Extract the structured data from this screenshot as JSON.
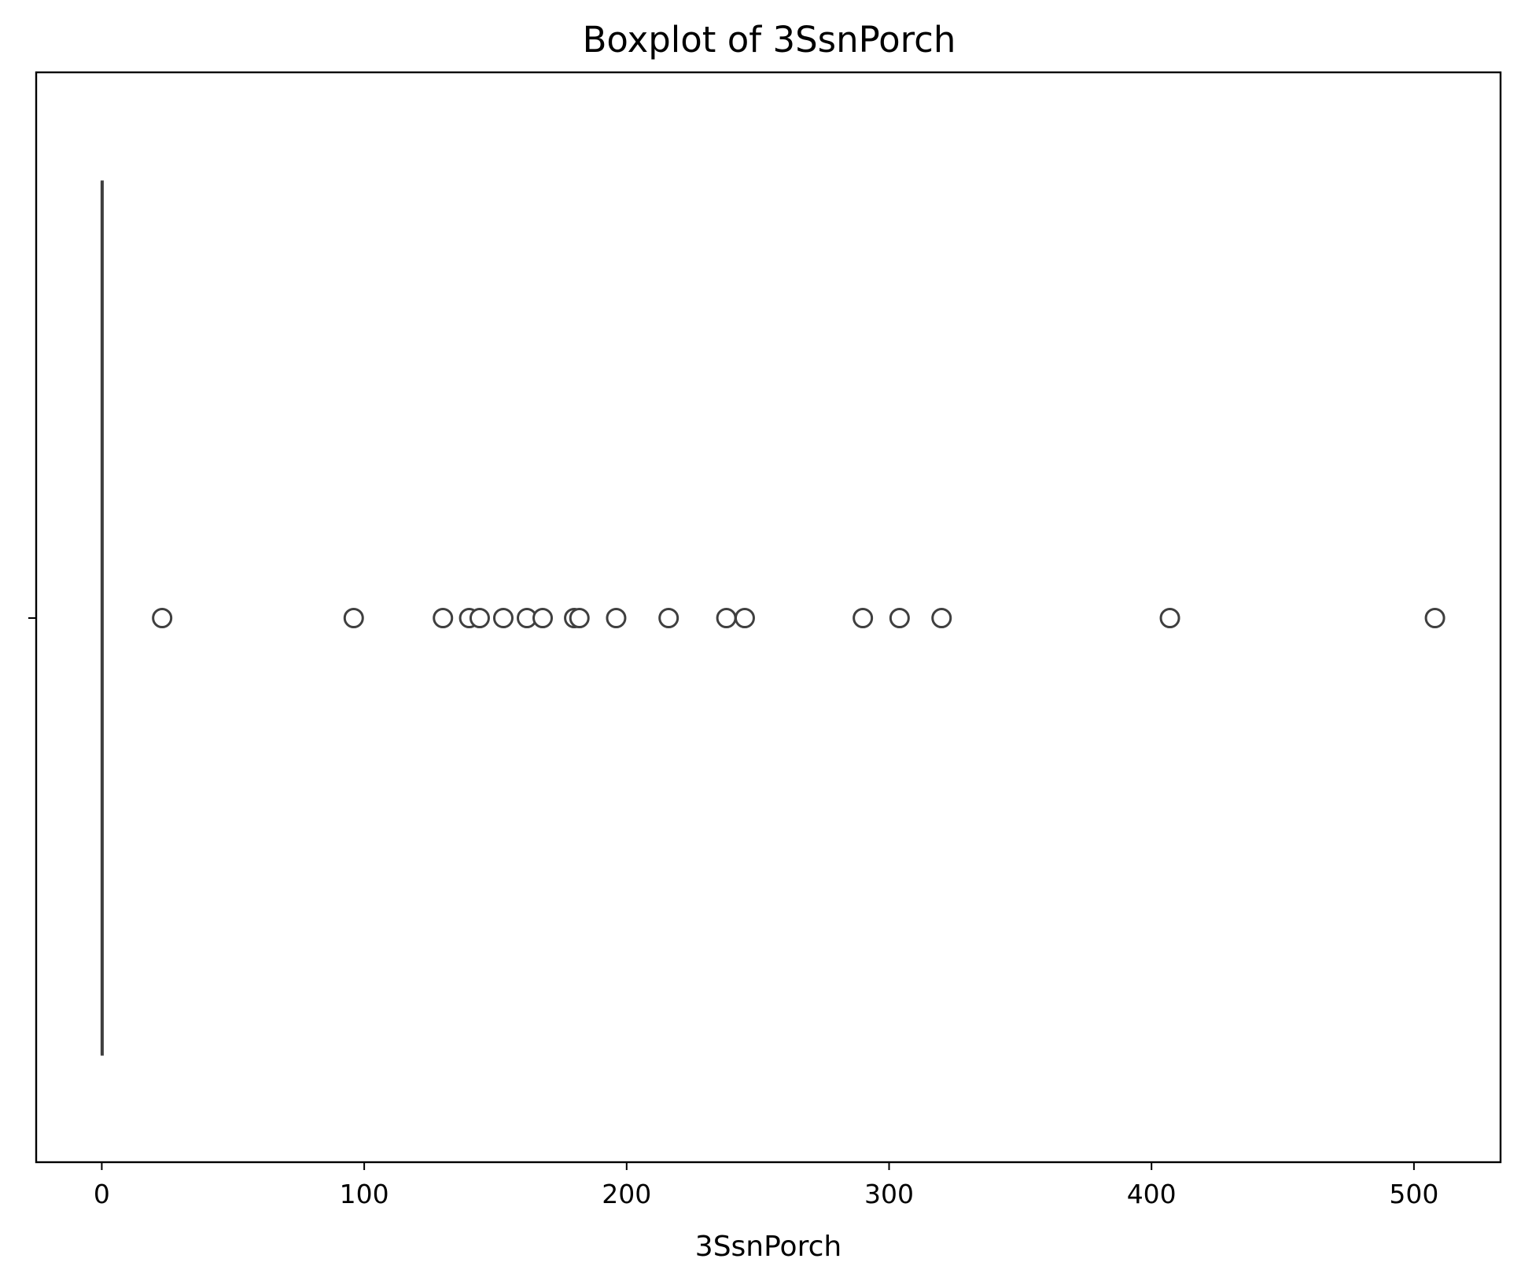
{
  "chart_data": {
    "type": "boxplot",
    "orientation": "horizontal",
    "title": "Boxplot of 3SsnPorch",
    "xlabel": "3SsnPorch",
    "ylabel": "",
    "xlim": [
      -25,
      533
    ],
    "xticks": [
      0,
      100,
      200,
      300,
      400,
      500
    ],
    "yticks": [
      ""
    ],
    "grid": false,
    "series": [
      {
        "box": {
          "min": 0,
          "q1": 0,
          "median": 0,
          "q3": 0,
          "max": 0
        },
        "outliers": [
          23,
          96,
          130,
          140,
          144,
          153,
          162,
          168,
          180,
          182,
          196,
          216,
          238,
          245,
          290,
          304,
          320,
          407,
          508
        ]
      }
    ],
    "colors": {
      "line": "#3f3f3f",
      "outlier_edge": "#3f3f3f",
      "outlier_face": "#ffffff",
      "axes": "#000000",
      "background": "#ffffff"
    }
  }
}
